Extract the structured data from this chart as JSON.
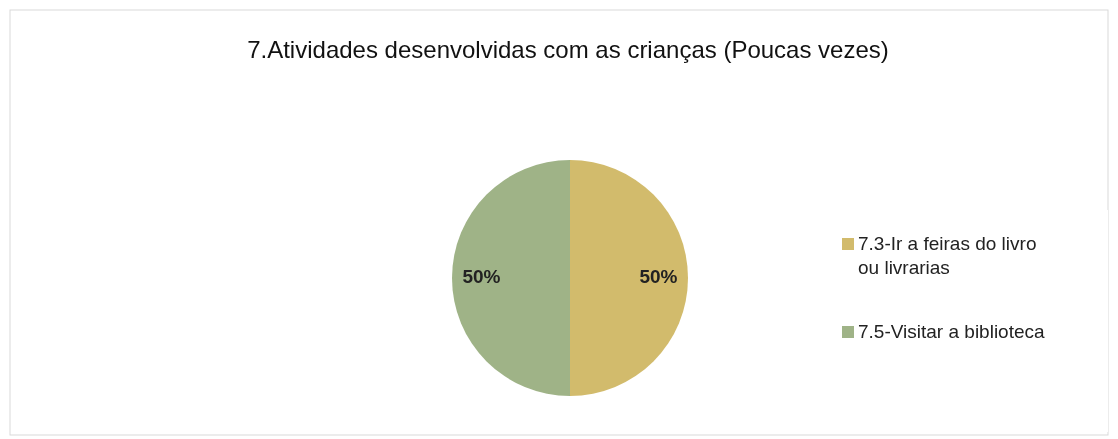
{
  "chart_data": {
    "type": "pie",
    "title": "7.Atividades desenvolvidas com as crianças (Poucas vezes)",
    "categories": [
      "7.3-Ir a feiras do livro ou livrarias",
      "7.5-Visitar a biblioteca"
    ],
    "values": [
      50,
      50
    ],
    "colors": [
      "#d2bb6c",
      "#9fb387"
    ],
    "value_labels": [
      "50%",
      "50%"
    ],
    "legend": "right"
  }
}
